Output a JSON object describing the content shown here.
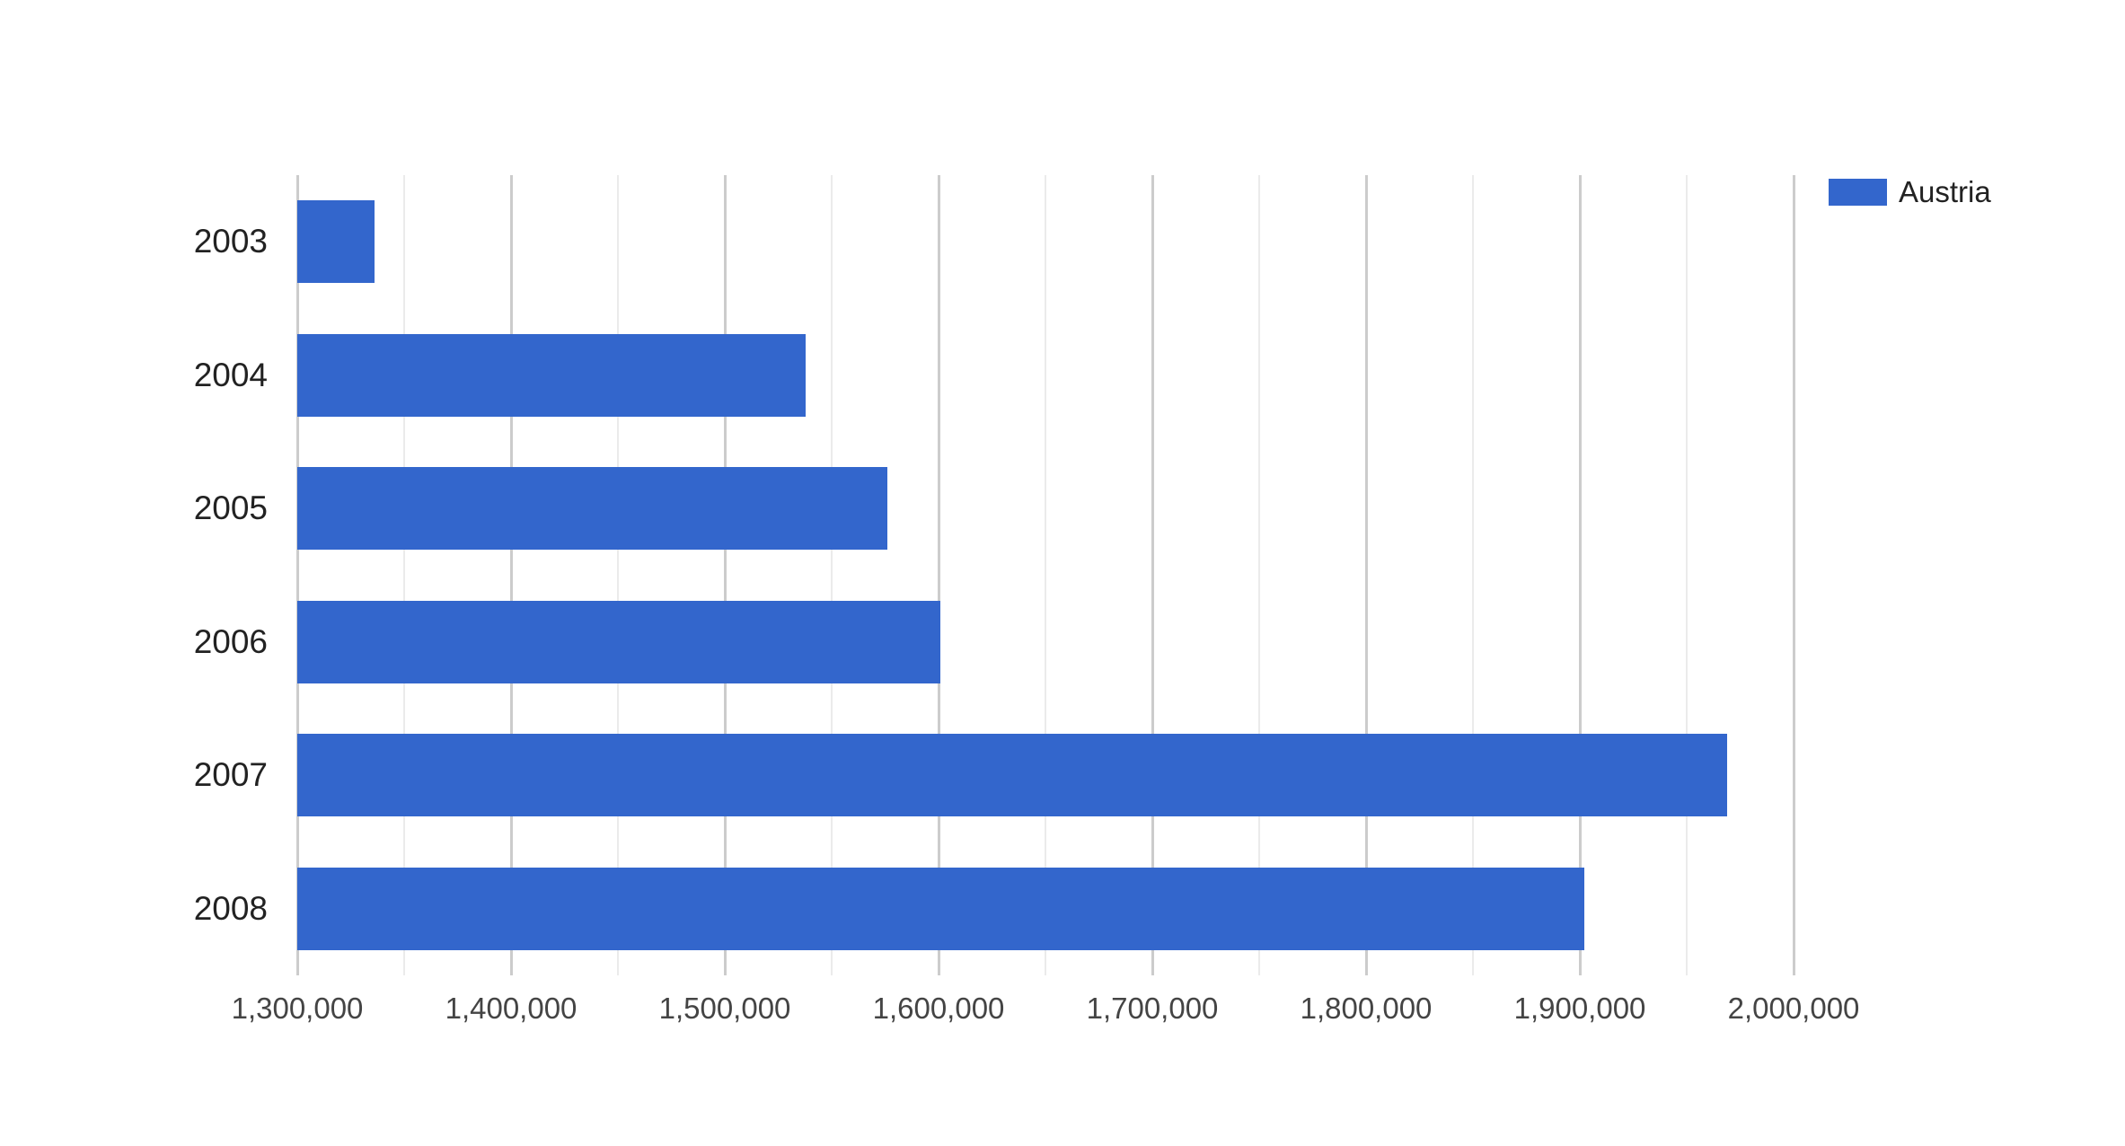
{
  "chart_data": {
    "type": "bar",
    "orientation": "horizontal",
    "title": "",
    "xlabel": "",
    "ylabel": "",
    "categories": [
      "2003",
      "2004",
      "2005",
      "2006",
      "2007",
      "2008"
    ],
    "series": [
      {
        "name": "Austria",
        "color": "#3366cc",
        "values": [
          1336000,
          1538000,
          1576000,
          1601000,
          1969000,
          1902000
        ]
      }
    ],
    "x_axis": {
      "min": 1300000,
      "max": 2000000,
      "major_step": 100000,
      "minor_step": 50000,
      "tick_labels": [
        "1,300,000",
        "1,400,000",
        "1,500,000",
        "1,600,000",
        "1,700,000",
        "1,800,000",
        "1,900,000",
        "2,000,000"
      ]
    },
    "grid": {
      "on": true,
      "major_color": "#cccccc",
      "minor_color": "#ebebeb"
    },
    "legend": {
      "position": "right-top",
      "entries": [
        {
          "label": "Austria",
          "color": "#3366cc"
        }
      ]
    },
    "background": "#ffffff",
    "text_colors": {
      "category_labels": "#222222",
      "value_labels": "#444444",
      "legend_label": "#222222"
    }
  }
}
